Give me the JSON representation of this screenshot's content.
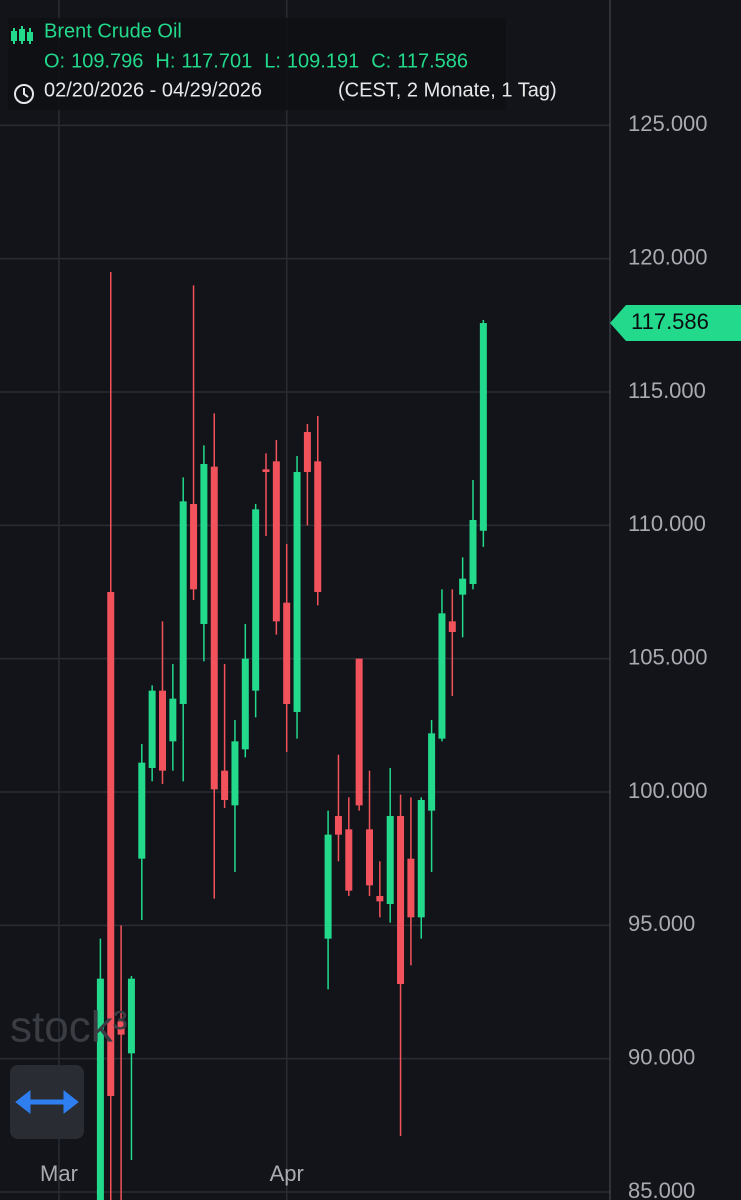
{
  "chart_data": {
    "type": "candlestick",
    "title": "Brent Crude Oil",
    "ohlc_prefixes": [
      "O:",
      "H:",
      "L:",
      "C:"
    ],
    "date_range": "02/20/2026 - 04/29/2026",
    "range_info": "(CEST, 2 Monate, 1 Tag)",
    "watermark": "stock³",
    "categories": [
      "Mar",
      null,
      null,
      null,
      null,
      null,
      null,
      null,
      null,
      null,
      null,
      null,
      null,
      null,
      null,
      null,
      null,
      null,
      null,
      null,
      null,
      null,
      "Apr",
      null,
      null,
      null,
      null,
      null,
      null,
      null,
      null,
      null,
      null,
      null,
      null,
      null,
      null,
      null,
      null,
      null,
      null,
      null
    ],
    "open": [
      null,
      null,
      null,
      null,
      84.5,
      107.5,
      91.4,
      90.2,
      97.5,
      100.9,
      103.8,
      101.9,
      103.3,
      110.8,
      106.3,
      112.2,
      100.8,
      99.5,
      101.6,
      103.8,
      112.1,
      112.4,
      107.1,
      103.0,
      113.5,
      112.4,
      94.5,
      99.1,
      98.6,
      105.0,
      98.6,
      96.1,
      95.8,
      99.1,
      97.5,
      95.3,
      99.3,
      102.0,
      106.4,
      107.4,
      107.8,
      109.796
    ],
    "high": [
      null,
      null,
      null,
      null,
      94.5,
      119.5,
      95.0,
      93.1,
      101.8,
      104.0,
      106.4,
      104.8,
      111.8,
      119.0,
      113.0,
      114.2,
      104.8,
      102.7,
      106.3,
      110.8,
      112.7,
      113.2,
      109.3,
      112.6,
      113.8,
      114.1,
      99.3,
      101.4,
      99.8,
      105.0,
      100.8,
      97.4,
      100.9,
      99.9,
      99.8,
      99.8,
      102.7,
      107.6,
      107.6,
      108.8,
      111.7,
      117.701
    ],
    "low": [
      null,
      null,
      null,
      null,
      84.0,
      84.0,
      84.5,
      86.2,
      95.2,
      100.4,
      100.3,
      100.8,
      100.4,
      107.2,
      104.9,
      96.0,
      99.4,
      97.0,
      101.3,
      102.8,
      109.6,
      105.9,
      101.5,
      102.0,
      110.0,
      107.0,
      92.6,
      97.4,
      96.1,
      99.3,
      96.1,
      95.3,
      95.1,
      87.1,
      93.5,
      94.5,
      97.0,
      101.9,
      103.6,
      105.8,
      107.6,
      109.191
    ],
    "close": [
      null,
      null,
      null,
      null,
      93.0,
      88.6,
      90.9,
      93.0,
      101.1,
      103.8,
      100.8,
      103.5,
      110.9,
      107.6,
      112.3,
      100.1,
      99.7,
      101.9,
      105.0,
      110.6,
      112.0,
      106.4,
      103.3,
      112.0,
      112.0,
      107.5,
      98.4,
      98.4,
      96.3,
      99.5,
      96.5,
      95.9,
      99.1,
      92.8,
      95.3,
      99.7,
      102.2,
      106.7,
      106.0,
      108.0,
      110.2,
      117.586
    ],
    "up_color": "#22d98c",
    "down_color": "#f2525b",
    "ylim": [
      84.7,
      129.7
    ],
    "yticks": [
      {
        "value": 85,
        "label": "85.000"
      },
      {
        "value": 90,
        "label": "90.000"
      },
      {
        "value": 95,
        "label": "95.000"
      },
      {
        "value": 100,
        "label": "100.000"
      },
      {
        "value": 105,
        "label": "105.000"
      },
      {
        "value": 110,
        "label": "110.000"
      },
      {
        "value": 115,
        "label": "115.000"
      },
      {
        "value": 120,
        "label": "120.000"
      },
      {
        "value": 125,
        "label": "125.000"
      }
    ],
    "grid": true
  }
}
